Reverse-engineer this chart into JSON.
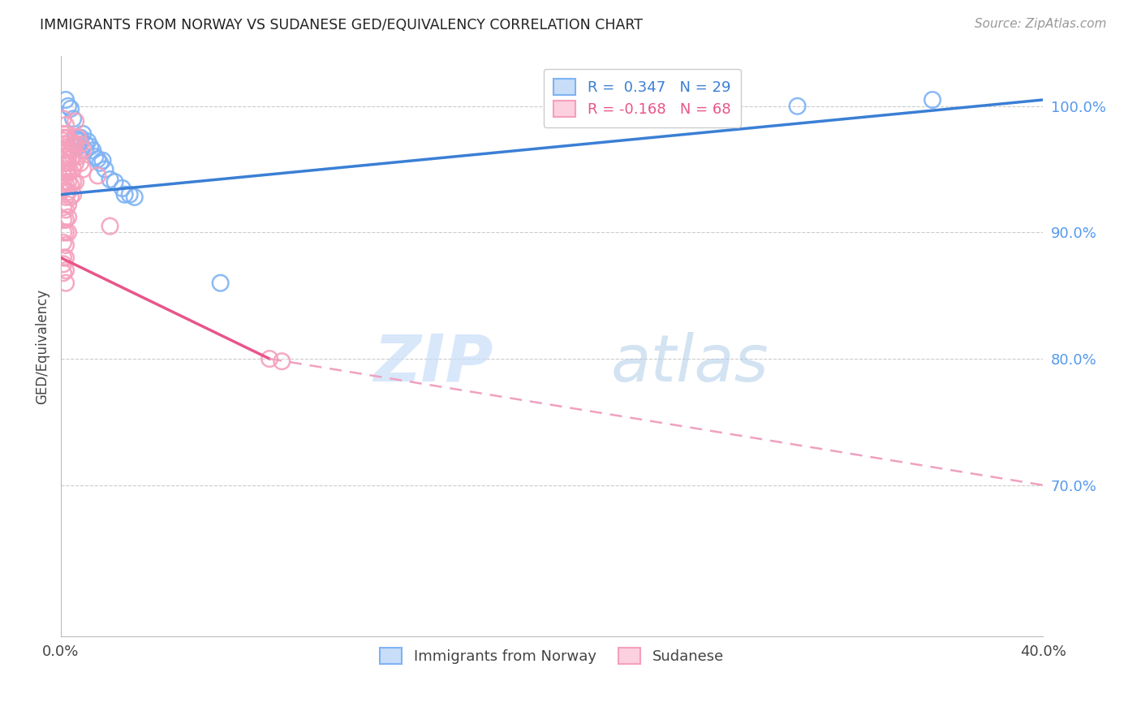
{
  "title": "IMMIGRANTS FROM NORWAY VS SUDANESE GED/EQUIVALENCY CORRELATION CHART",
  "source": "Source: ZipAtlas.com",
  "ylabel": "GED/Equivalency",
  "watermark_zip": "ZIP",
  "watermark_atlas": "atlas",
  "legend_blue_r": "R =  0.347",
  "legend_blue_n": "N = 29",
  "legend_pink_r": "R = -0.168",
  "legend_pink_n": "N = 68",
  "xlim": [
    0.0,
    0.4
  ],
  "ylim": [
    0.58,
    1.04
  ],
  "yticks_right": [
    1.0,
    0.9,
    0.8,
    0.7
  ],
  "yticks_right_labels": [
    "100.0%",
    "90.0%",
    "80.0%",
    "70.0%"
  ],
  "grid_color": "#cccccc",
  "blue_color": "#7fb3f5",
  "pink_color": "#f5a0bc",
  "blue_line_color": "#3a7fd5",
  "pink_line_color": "#e8558a",
  "pink_dash_color": "#f0a0c0",
  "background_color": "#ffffff",
  "norway_points": [
    [
      0.002,
      1.005
    ],
    [
      0.003,
      1.0
    ],
    [
      0.004,
      0.998
    ],
    [
      0.005,
      0.99
    ],
    [
      0.006,
      0.975
    ],
    [
      0.007,
      0.973
    ],
    [
      0.007,
      0.968
    ],
    [
      0.008,
      0.975
    ],
    [
      0.008,
      0.972
    ],
    [
      0.009,
      0.978
    ],
    [
      0.01,
      0.97
    ],
    [
      0.01,
      0.965
    ],
    [
      0.011,
      0.972
    ],
    [
      0.012,
      0.968
    ],
    [
      0.013,
      0.965
    ],
    [
      0.014,
      0.96
    ],
    [
      0.015,
      0.958
    ],
    [
      0.016,
      0.955
    ],
    [
      0.017,
      0.957
    ],
    [
      0.018,
      0.95
    ],
    [
      0.02,
      0.942
    ],
    [
      0.022,
      0.94
    ],
    [
      0.025,
      0.935
    ],
    [
      0.026,
      0.93
    ],
    [
      0.028,
      0.93
    ],
    [
      0.03,
      0.928
    ],
    [
      0.065,
      0.86
    ],
    [
      0.3,
      1.0
    ],
    [
      0.355,
      1.005
    ]
  ],
  "sudanese_points": [
    [
      0.001,
      0.99
    ],
    [
      0.001,
      0.978
    ],
    [
      0.001,
      0.975
    ],
    [
      0.001,
      0.97
    ],
    [
      0.001,
      0.965
    ],
    [
      0.001,
      0.96
    ],
    [
      0.001,
      0.955
    ],
    [
      0.001,
      0.95
    ],
    [
      0.001,
      0.945
    ],
    [
      0.001,
      0.94
    ],
    [
      0.001,
      0.935
    ],
    [
      0.001,
      0.92
    ],
    [
      0.001,
      0.91
    ],
    [
      0.001,
      0.9
    ],
    [
      0.001,
      0.892
    ],
    [
      0.001,
      0.88
    ],
    [
      0.001,
      0.875
    ],
    [
      0.001,
      0.868
    ],
    [
      0.002,
      0.985
    ],
    [
      0.002,
      0.975
    ],
    [
      0.002,
      0.97
    ],
    [
      0.002,
      0.96
    ],
    [
      0.002,
      0.955
    ],
    [
      0.002,
      0.948
    ],
    [
      0.002,
      0.938
    ],
    [
      0.002,
      0.928
    ],
    [
      0.002,
      0.918
    ],
    [
      0.002,
      0.91
    ],
    [
      0.002,
      0.9
    ],
    [
      0.002,
      0.89
    ],
    [
      0.002,
      0.88
    ],
    [
      0.002,
      0.87
    ],
    [
      0.002,
      0.86
    ],
    [
      0.003,
      0.975
    ],
    [
      0.003,
      0.968
    ],
    [
      0.003,
      0.96
    ],
    [
      0.003,
      0.955
    ],
    [
      0.003,
      0.948
    ],
    [
      0.003,
      0.94
    ],
    [
      0.003,
      0.932
    ],
    [
      0.003,
      0.922
    ],
    [
      0.003,
      0.912
    ],
    [
      0.003,
      0.9
    ],
    [
      0.004,
      0.972
    ],
    [
      0.004,
      0.965
    ],
    [
      0.004,
      0.958
    ],
    [
      0.004,
      0.948
    ],
    [
      0.004,
      0.938
    ],
    [
      0.004,
      0.928
    ],
    [
      0.005,
      0.97
    ],
    [
      0.005,
      0.96
    ],
    [
      0.005,
      0.95
    ],
    [
      0.005,
      0.94
    ],
    [
      0.005,
      0.93
    ],
    [
      0.006,
      0.988
    ],
    [
      0.006,
      0.97
    ],
    [
      0.006,
      0.955
    ],
    [
      0.006,
      0.94
    ],
    [
      0.007,
      0.975
    ],
    [
      0.007,
      0.96
    ],
    [
      0.008,
      0.97
    ],
    [
      0.008,
      0.955
    ],
    [
      0.009,
      0.965
    ],
    [
      0.009,
      0.95
    ],
    [
      0.015,
      0.945
    ],
    [
      0.02,
      0.905
    ],
    [
      0.085,
      0.8
    ],
    [
      0.09,
      0.798
    ]
  ],
  "blue_line": [
    [
      0.0,
      0.93
    ],
    [
      0.4,
      1.005
    ]
  ],
  "pink_solid_line": [
    [
      0.0,
      0.88
    ],
    [
      0.085,
      0.8
    ]
  ],
  "pink_dash_line": [
    [
      0.085,
      0.8
    ],
    [
      0.4,
      0.7
    ]
  ]
}
